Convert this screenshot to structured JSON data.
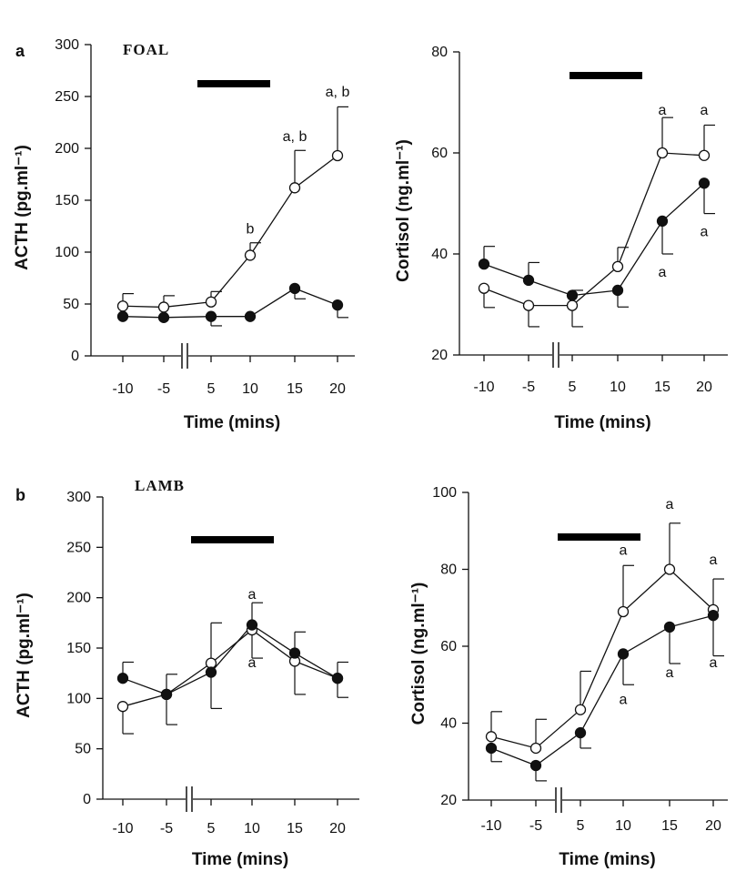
{
  "figure": {
    "rows": [
      {
        "letter": "a",
        "title": "FOAL"
      },
      {
        "letter": "b",
        "title": "LAMB"
      }
    ]
  },
  "chart_data": [
    {
      "id": "foal-acth",
      "type": "line",
      "panel": "a",
      "title": "FOAL",
      "xlabel": "Time (mins)",
      "ylabel": "ACTH (pg.ml⁻¹)",
      "x": [
        -10,
        -5,
        5,
        10,
        15,
        20
      ],
      "x_tick_labels": [
        "-10",
        "-5",
        "5",
        "10",
        "15",
        "20"
      ],
      "ylim": [
        0,
        300
      ],
      "y_ticks": [
        0,
        50,
        100,
        150,
        200,
        250,
        300
      ],
      "axis_break_between": [
        -5,
        5
      ],
      "treatment_bar": [
        2.5,
        12
      ],
      "series": [
        {
          "name": "open",
          "marker": "open-circle",
          "values": [
            48,
            47,
            52,
            97,
            162,
            193
          ],
          "err_up": [
            12,
            11,
            10,
            12,
            36,
            47
          ],
          "err_down": [
            0,
            0,
            0,
            0,
            0,
            0
          ]
        },
        {
          "name": "filled",
          "marker": "filled-circle",
          "values": [
            38,
            37,
            38,
            38,
            65,
            49
          ],
          "err_up": [
            0,
            0,
            0,
            0,
            0,
            0
          ],
          "err_down": [
            0,
            0,
            9,
            0,
            10,
            12
          ]
        }
      ],
      "annotations": [
        {
          "x": 10,
          "y": 118,
          "text": "b"
        },
        {
          "x": 15,
          "y": 207,
          "text": "a, b"
        },
        {
          "x": 20,
          "y": 250,
          "text": "a, b"
        }
      ]
    },
    {
      "id": "foal-cortisol",
      "type": "line",
      "panel": "a",
      "xlabel": "Time (mins)",
      "ylabel": "Cortisol (ng.ml⁻¹)",
      "x": [
        -10,
        -5,
        5,
        10,
        15,
        20
      ],
      "x_tick_labels": [
        "-10",
        "-5",
        "5",
        "10",
        "15",
        "20"
      ],
      "ylim": [
        20,
        80
      ],
      "y_ticks": [
        20,
        40,
        60,
        80
      ],
      "axis_break_between": [
        -5,
        5
      ],
      "treatment_bar": [
        2.5,
        12
      ],
      "series": [
        {
          "name": "open",
          "marker": "open-circle",
          "values": [
            33.2,
            29.8,
            29.8,
            37.5,
            60,
            59.5
          ],
          "err_up": [
            0,
            0,
            0,
            3.8,
            7,
            6
          ],
          "err_down": [
            3.8,
            4.2,
            4.2,
            0,
            0,
            0
          ]
        },
        {
          "name": "filled",
          "marker": "filled-circle",
          "values": [
            38,
            34.8,
            31.8,
            32.8,
            46.5,
            54
          ],
          "err_up": [
            3.5,
            3.5,
            1.0,
            0,
            0,
            0
          ],
          "err_down": [
            0,
            0,
            0,
            3.3,
            6.5,
            6
          ]
        }
      ],
      "annotations": [
        {
          "x": 15,
          "y": 67.6,
          "text": "a"
        },
        {
          "x": 20,
          "y": 67.6,
          "text": "a"
        },
        {
          "x": 15,
          "y": 35.5,
          "text": "a"
        },
        {
          "x": 20,
          "y": 43.5,
          "text": "a"
        }
      ]
    },
    {
      "id": "lamb-acth",
      "type": "line",
      "panel": "b",
      "title": "LAMB",
      "xlabel": "Time (mins)",
      "ylabel": "ACTH (pg.ml⁻¹)",
      "x": [
        -10,
        -5,
        5,
        10,
        15,
        20
      ],
      "x_tick_labels": [
        "-10",
        "-5",
        "5",
        "10",
        "15",
        "20"
      ],
      "ylim": [
        0,
        300
      ],
      "y_ticks": [
        0,
        50,
        100,
        150,
        200,
        250,
        300
      ],
      "axis_break_between": [
        -5,
        5
      ],
      "treatment_bar": [
        2.5,
        12
      ],
      "series": [
        {
          "name": "open",
          "marker": "open-circle",
          "values": [
            92,
            104,
            135,
            168,
            137,
            120
          ],
          "err_up": [
            0,
            0,
            40,
            0,
            0,
            0
          ],
          "err_down": [
            27,
            0,
            0,
            0,
            33,
            0
          ]
        },
        {
          "name": "filled",
          "marker": "filled-circle",
          "values": [
            120,
            104,
            126,
            173,
            145,
            120
          ],
          "err_up": [
            16,
            20,
            0,
            22,
            21,
            16
          ],
          "err_down": [
            0,
            30,
            36,
            33,
            0,
            19
          ]
        }
      ],
      "annotations": [
        {
          "x": 10,
          "y": 199,
          "text": "a"
        },
        {
          "x": 10,
          "y": 131,
          "text": "a"
        }
      ]
    },
    {
      "id": "lamb-cortisol",
      "type": "line",
      "panel": "b",
      "xlabel": "Time (mins)",
      "ylabel": "Cortisol (ng.ml⁻¹)",
      "x": [
        -10,
        -5,
        5,
        10,
        15,
        20
      ],
      "x_tick_labels": [
        "-10",
        "-5",
        "5",
        "10",
        "15",
        "20"
      ],
      "ylim": [
        20,
        100
      ],
      "y_ticks": [
        20,
        40,
        60,
        80,
        100
      ],
      "axis_break_between": [
        -5,
        5
      ],
      "treatment_bar": [
        2.5,
        12
      ],
      "series": [
        {
          "name": "open",
          "marker": "open-circle",
          "values": [
            36.5,
            33.5,
            43.5,
            69,
            80,
            69.5
          ],
          "err_up": [
            6.5,
            7.5,
            10,
            12,
            12,
            8
          ],
          "err_down": [
            0,
            0,
            0,
            0,
            0,
            0
          ]
        },
        {
          "name": "filled",
          "marker": "filled-circle",
          "values": [
            33.5,
            29,
            37.5,
            58,
            65,
            68
          ],
          "err_up": [
            0,
            0,
            0,
            0,
            0,
            0
          ],
          "err_down": [
            3.5,
            4,
            4,
            8,
            9.5,
            10.5
          ]
        }
      ],
      "annotations": [
        {
          "x": 10,
          "y": 83.8,
          "text": "a"
        },
        {
          "x": 15,
          "y": 95.7,
          "text": "a"
        },
        {
          "x": 20,
          "y": 81.3,
          "text": "a"
        },
        {
          "x": 10,
          "y": 45,
          "text": "a"
        },
        {
          "x": 15,
          "y": 52,
          "text": "a"
        },
        {
          "x": 20,
          "y": 54.5,
          "text": "a"
        }
      ]
    }
  ]
}
